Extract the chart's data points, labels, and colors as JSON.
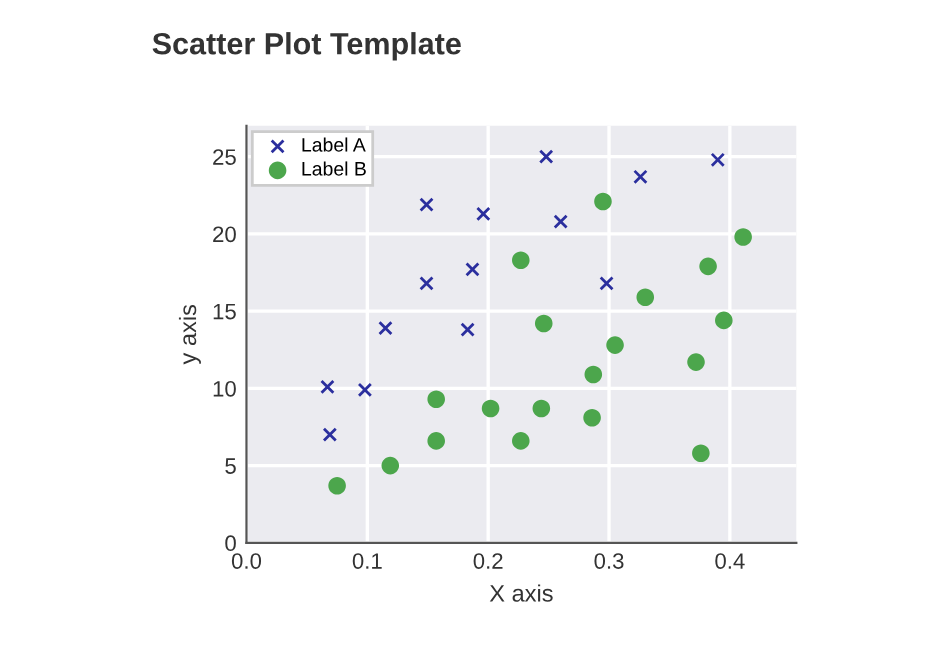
{
  "chart_data": {
    "type": "scatter",
    "title": "Scatter Plot Template",
    "xlabel": "X axis",
    "ylabel": "y axis",
    "xlim": [
      0.0,
      0.455
    ],
    "ylim": [
      0,
      27.0
    ],
    "xticks": [
      {
        "value": 0.0,
        "label": "0.0"
      },
      0.1,
      0.2,
      0.3,
      0.4
    ],
    "yticks": [
      0,
      5,
      10,
      15,
      20,
      25
    ],
    "grid": true,
    "legend": "top left",
    "series": [
      {
        "name": "Label A",
        "color": "#2b2f9e",
        "marker": "cross",
        "x": [
          0.067,
          0.069,
          0.098,
          0.115,
          0.149,
          0.149,
          0.183,
          0.187,
          0.196,
          0.248,
          0.26,
          0.298,
          0.326,
          0.39
        ],
        "values": [
          10.1,
          7.0,
          9.9,
          13.9,
          21.9,
          16.8,
          13.8,
          17.7,
          21.3,
          25.0,
          20.8,
          16.8,
          23.7,
          24.8
        ]
      },
      {
        "name": "Label B",
        "color": "#4ca64c",
        "marker": "circle",
        "x": [
          0.075,
          0.119,
          0.157,
          0.157,
          0.202,
          0.227,
          0.227,
          0.244,
          0.246,
          0.286,
          0.287,
          0.295,
          0.305,
          0.33,
          0.372,
          0.376,
          0.382,
          0.395,
          0.411
        ],
        "values": [
          3.7,
          5.0,
          9.3,
          6.6,
          8.7,
          18.3,
          6.6,
          8.7,
          14.2,
          8.1,
          10.9,
          22.1,
          12.8,
          15.9,
          11.7,
          5.8,
          17.9,
          14.4,
          19.8
        ]
      }
    ]
  }
}
